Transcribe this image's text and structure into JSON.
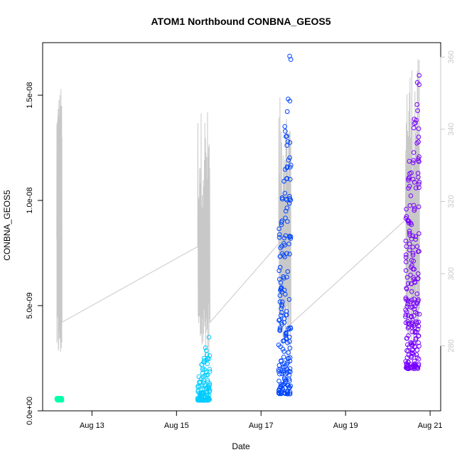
{
  "chart_data": {
    "type": "scatter",
    "title": "ATOM1 Northbound CONBNA_GEOS5",
    "xlabel": "Date",
    "ylabel": "CONBNA_GEOS5",
    "x_range": [
      "2016-08-11T20:00",
      "2016-08-21T06:00"
    ],
    "y_range": [
      0,
      1.75e-08
    ],
    "y2_range": [
      262,
      364
    ],
    "x_ticks": [
      {
        "date": "2016-08-13",
        "label": "Aug 13"
      },
      {
        "date": "2016-08-15",
        "label": "Aug 15"
      },
      {
        "date": "2016-08-17",
        "label": "Aug 17"
      },
      {
        "date": "2016-08-19",
        "label": "Aug 19"
      },
      {
        "date": "2016-08-21",
        "label": "Aug 21"
      }
    ],
    "y_ticks": [
      {
        "value": 0,
        "label": "0.0e+00"
      },
      {
        "value": 5e-09,
        "label": "5.0e-09"
      },
      {
        "value": 1e-08,
        "label": "1.0e-08"
      },
      {
        "value": 1.5e-08,
        "label": "1.5e-08"
      }
    ],
    "y2_ticks": [
      {
        "value": 280,
        "label": "280"
      },
      {
        "value": 300,
        "label": "300"
      },
      {
        "value": 320,
        "label": "320"
      },
      {
        "value": 340,
        "label": "340"
      },
      {
        "value": 360,
        "label": "360"
      }
    ],
    "series": [
      {
        "flight": 1,
        "color": "#00ffaa",
        "start": "2016-08-12T04:00",
        "end": "2016-08-12T07:00",
        "y_min": 5e-10,
        "y_max": 6e-10,
        "n": 60
      },
      {
        "flight": 2,
        "color": "#00ccff",
        "start": "2016-08-15T12:00",
        "end": "2016-08-15T19:00",
        "y_min": 5e-10,
        "y_max": 3.5e-09,
        "n": 110
      },
      {
        "flight": 3,
        "color": "#0044ff",
        "start": "2016-08-17T10:00",
        "end": "2016-08-17T17:00",
        "y_min": 8e-10,
        "y_max": 1.7e-08,
        "n": 190
      },
      {
        "flight": 4,
        "color": "#7700ff",
        "start": "2016-08-20T10:00",
        "end": "2016-08-20T18:00",
        "y_min": 2e-09,
        "y_max": 1.65e-08,
        "n": 220
      }
    ],
    "secondary_line": {
      "name": "",
      "color": "#c8c8c8",
      "axis": "right",
      "segments": [
        {
          "start": "2016-08-12T04:00",
          "end": "2016-08-12T07:00",
          "y_min": 275,
          "y_max": 352
        },
        {
          "start": "2016-08-15T12:00",
          "end": "2016-08-15T19:00",
          "y_min": 276,
          "y_max": 346
        },
        {
          "start": "2016-08-17T10:00",
          "end": "2016-08-17T17:00",
          "y_min": 275,
          "y_max": 349
        },
        {
          "start": "2016-08-20T10:00",
          "end": "2016-08-20T18:00",
          "y_min": 278,
          "y_max": 360
        }
      ]
    },
    "grid": false,
    "legend": "none"
  }
}
